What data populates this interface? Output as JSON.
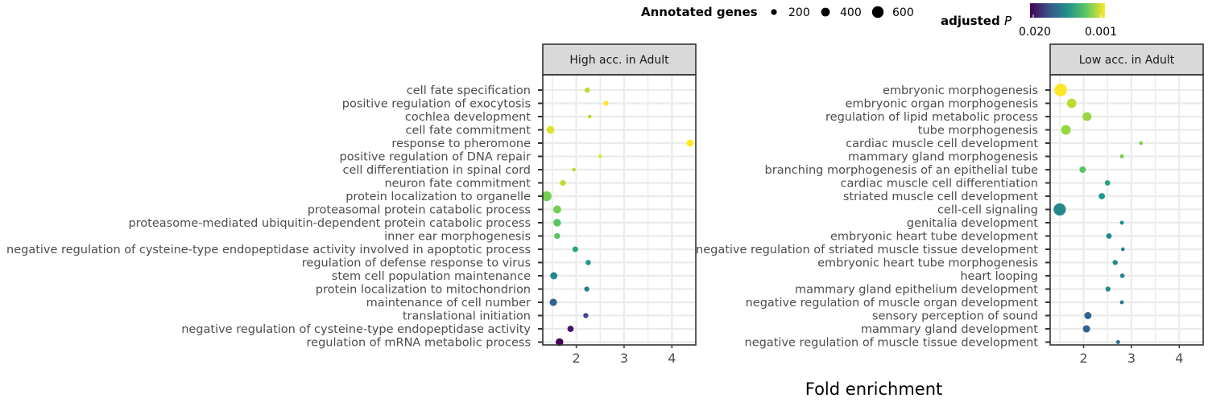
{
  "chart_data": {
    "type": "scatter",
    "xlabel": "Fold enrichment",
    "xlim": [
      1.3,
      4.5
    ],
    "xticks": [
      2,
      3,
      4
    ],
    "legend": {
      "size_title": "Annotated genes",
      "size_entries": [
        {
          "label": "200",
          "value": 200
        },
        {
          "label": "400",
          "value": 400
        },
        {
          "label": "600",
          "value": 600
        }
      ],
      "color_title": "adjusted",
      "color_title_italic": "P",
      "color_tick_labels": [
        "0.020",
        "0.001"
      ],
      "color_range": [
        0.02,
        0.001
      ],
      "palette": "viridis"
    },
    "panels": [
      {
        "strip_label": "High acc. in Adult",
        "terms": [
          {
            "label": "cell fate specification",
            "fold": 2.23,
            "genes": 120,
            "padj": 0.003
          },
          {
            "label": "positive regulation of exocytosis",
            "fold": 2.62,
            "genes": 100,
            "padj": 0.001
          },
          {
            "label": "cochlea development",
            "fold": 2.28,
            "genes": 60,
            "padj": 0.003
          },
          {
            "label": "cell fate commitment",
            "fold": 1.46,
            "genes": 260,
            "padj": 0.002
          },
          {
            "label": "response to pheromone",
            "fold": 4.38,
            "genes": 210,
            "padj": 0.001
          },
          {
            "label": "positive regulation of DNA repair",
            "fold": 2.5,
            "genes": 50,
            "padj": 0.002
          },
          {
            "label": "cell differentiation in spinal cord",
            "fold": 1.95,
            "genes": 60,
            "padj": 0.003
          },
          {
            "label": "neuron fate commitment",
            "fold": 1.72,
            "genes": 140,
            "padj": 0.003
          },
          {
            "label": "protein localization to organelle",
            "fold": 1.38,
            "genes": 420,
            "padj": 0.005
          },
          {
            "label": "proteasomal protein catabolic process",
            "fold": 1.6,
            "genes": 280,
            "padj": 0.005
          },
          {
            "label": "proteasome-mediated ubiquitin-dependent protein catabolic process",
            "fold": 1.6,
            "genes": 250,
            "padj": 0.006
          },
          {
            "label": "inner ear morphogenesis",
            "fold": 1.6,
            "genes": 150,
            "padj": 0.006
          },
          {
            "label": "negative regulation of cysteine-type endopeptidase activity involved in apoptotic process",
            "fold": 1.98,
            "genes": 140,
            "padj": 0.009
          },
          {
            "label": "regulation of defense response to virus",
            "fold": 2.25,
            "genes": 120,
            "padj": 0.01
          },
          {
            "label": "stem cell population maintenance",
            "fold": 1.53,
            "genes": 220,
            "padj": 0.011
          },
          {
            "label": "protein localization to mitochondrion",
            "fold": 2.22,
            "genes": 110,
            "padj": 0.012
          },
          {
            "label": "maintenance of cell number",
            "fold": 1.52,
            "genes": 230,
            "padj": 0.014
          },
          {
            "label": "translational initiation",
            "fold": 2.2,
            "genes": 110,
            "padj": 0.016
          },
          {
            "label": "negative regulation of cysteine-type endopeptidase activity",
            "fold": 1.88,
            "genes": 170,
            "padj": 0.019
          },
          {
            "label": "regulation of mRNA metabolic process",
            "fold": 1.65,
            "genes": 250,
            "padj": 0.02
          }
        ]
      },
      {
        "strip_label": "Low acc. in Adult",
        "terms": [
          {
            "label": "embryonic morphogenesis",
            "fold": 1.52,
            "genes": 680,
            "padj": 0.001
          },
          {
            "label": "embryonic organ morphogenesis",
            "fold": 1.75,
            "genes": 380,
            "padj": 0.003
          },
          {
            "label": "regulation of lipid metabolic process",
            "fold": 2.07,
            "genes": 340,
            "padj": 0.004
          },
          {
            "label": "tube morphogenesis",
            "fold": 1.63,
            "genes": 400,
            "padj": 0.004
          },
          {
            "label": "cardiac muscle cell development",
            "fold": 3.2,
            "genes": 60,
            "padj": 0.005
          },
          {
            "label": "mammary gland morphogenesis",
            "fold": 2.8,
            "genes": 70,
            "padj": 0.005
          },
          {
            "label": "branching morphogenesis of an epithelial tube",
            "fold": 1.98,
            "genes": 180,
            "padj": 0.006
          },
          {
            "label": "cardiac muscle cell differentiation",
            "fold": 2.5,
            "genes": 130,
            "padj": 0.009
          },
          {
            "label": "striated muscle cell development",
            "fold": 2.38,
            "genes": 170,
            "padj": 0.01
          },
          {
            "label": "cell-cell signaling",
            "fold": 1.5,
            "genes": 650,
            "padj": 0.011
          },
          {
            "label": "genitalia development",
            "fold": 2.8,
            "genes": 70,
            "padj": 0.01
          },
          {
            "label": "embryonic heart tube development",
            "fold": 2.53,
            "genes": 130,
            "padj": 0.011
          },
          {
            "label": "negative regulation of striated muscle tissue development",
            "fold": 2.82,
            "genes": 60,
            "padj": 0.012
          },
          {
            "label": "embryonic heart tube morphogenesis",
            "fold": 2.66,
            "genes": 110,
            "padj": 0.011
          },
          {
            "label": "heart looping",
            "fold": 2.81,
            "genes": 90,
            "padj": 0.011
          },
          {
            "label": "mammary gland epithelium development",
            "fold": 2.51,
            "genes": 110,
            "padj": 0.011
          },
          {
            "label": "negative regulation of muscle organ development",
            "fold": 2.8,
            "genes": 70,
            "padj": 0.012
          },
          {
            "label": "sensory perception of sound",
            "fold": 2.09,
            "genes": 220,
            "padj": 0.014
          },
          {
            "label": "mammary gland development",
            "fold": 2.06,
            "genes": 230,
            "padj": 0.014
          },
          {
            "label": "negative regulation of muscle tissue development",
            "fold": 2.72,
            "genes": 70,
            "padj": 0.013
          }
        ]
      }
    ]
  }
}
